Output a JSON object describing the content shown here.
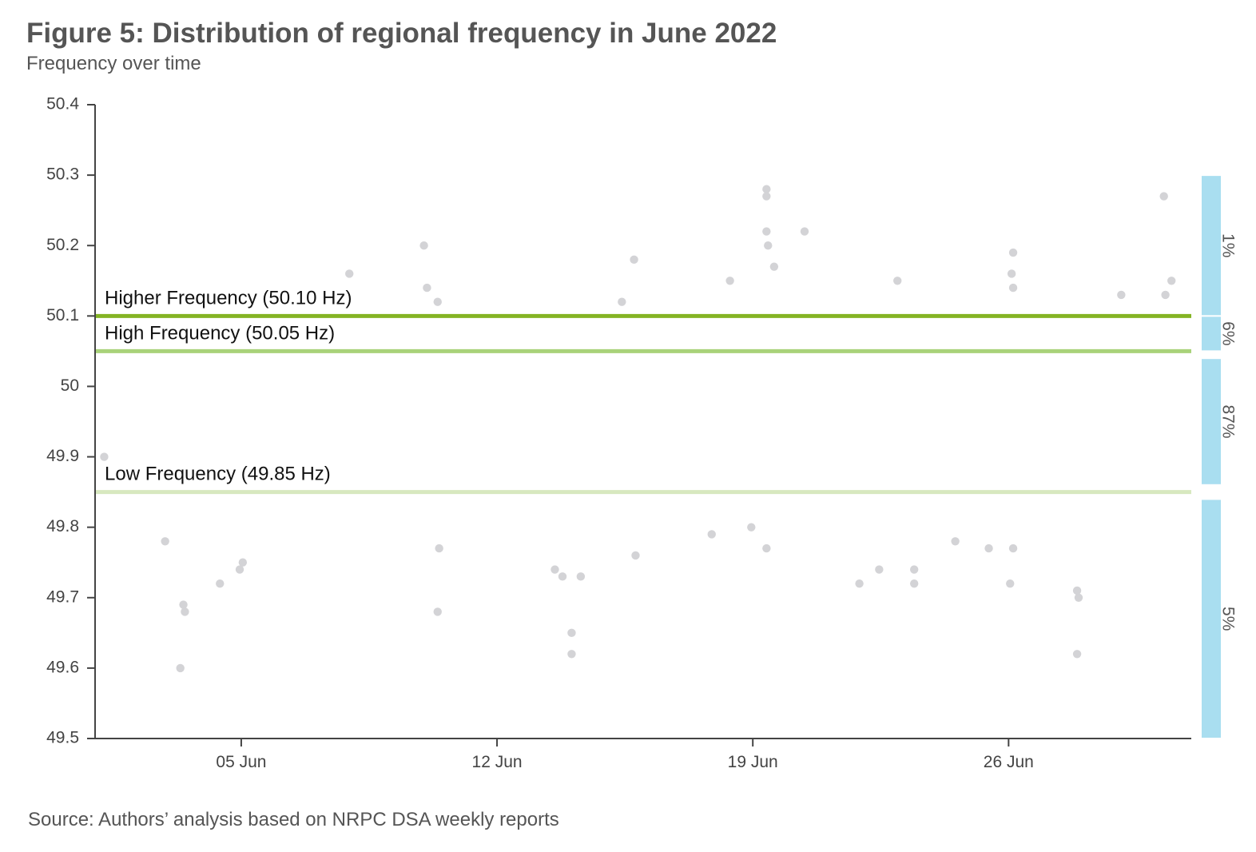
{
  "chart_data": {
    "type": "scatter",
    "title": "Figure 5: Distribution of regional frequency in June 2022",
    "subtitle": "Frequency over time",
    "source": "Source: Authors’ analysis based on NRPC DSA weekly reports",
    "x_range": [
      "2022-06-01",
      "2022-06-30"
    ],
    "ylim": [
      49.5,
      50.4
    ],
    "y_ticks": [
      {
        "value": 50.4,
        "label": "50.4"
      },
      {
        "value": 50.3,
        "label": "50.3"
      },
      {
        "value": 50.2,
        "label": "50.2"
      },
      {
        "value": 50.1,
        "label": "50.1"
      },
      {
        "value": 50.0,
        "label": "50"
      },
      {
        "value": 49.9,
        "label": "49.9"
      },
      {
        "value": 49.8,
        "label": "49.8"
      },
      {
        "value": 49.7,
        "label": "49.7"
      },
      {
        "value": 49.6,
        "label": "49.6"
      },
      {
        "value": 49.5,
        "label": "49.5"
      }
    ],
    "x_ticks": [
      {
        "date": "2022-06-05",
        "label": "05 Jun"
      },
      {
        "date": "2022-06-12",
        "label": "12 Jun"
      },
      {
        "date": "2022-06-19",
        "label": "19 Jun"
      },
      {
        "date": "2022-06-26",
        "label": "26 Jun"
      }
    ],
    "reference_lines": [
      {
        "label": "Higher Frequency (50.10 Hz)",
        "value": 50.1,
        "color": "#84b424"
      },
      {
        "label": "High Frequency (50.05 Hz)",
        "value": 50.05,
        "color": "#a9d27a"
      },
      {
        "label": "Low Frequency (49.85 Hz)",
        "value": 49.85,
        "color": "#d7e8bf"
      }
    ],
    "share_bands": [
      {
        "label": "1%",
        "from": 50.1,
        "to": 50.3
      },
      {
        "label": "6%",
        "from": 50.05,
        "to": 50.1
      },
      {
        "label": "87%",
        "from": 49.86,
        "to": 50.04
      },
      {
        "label": "5%",
        "from": 49.5,
        "to": 49.84
      }
    ],
    "point_color": "#d3d3d6",
    "band_color": "#a9def0",
    "axis_color": "#444444",
    "points": [
      [
        "2022-06-01T06:00",
        49.9
      ],
      [
        "2022-06-03T08:00",
        49.6
      ],
      [
        "2022-06-03T10:00",
        49.69
      ],
      [
        "2022-06-03T11:00",
        49.68
      ],
      [
        "2022-06-02T22:00",
        49.78
      ],
      [
        "2022-06-04T10:00",
        49.72
      ],
      [
        "2022-06-04T23:00",
        49.74
      ],
      [
        "2022-06-05T01:00",
        49.75
      ],
      [
        "2022-06-07T23:00",
        50.16
      ],
      [
        "2022-06-10T00:00",
        50.2
      ],
      [
        "2022-06-10T02:00",
        50.14
      ],
      [
        "2022-06-10T09:00",
        50.12
      ],
      [
        "2022-06-10T09:00",
        49.68
      ],
      [
        "2022-06-10T10:00",
        49.77
      ],
      [
        "2022-06-13T14:00",
        49.74
      ],
      [
        "2022-06-13T19:00",
        49.73
      ],
      [
        "2022-06-14T01:00",
        49.65
      ],
      [
        "2022-06-14T01:00",
        49.62
      ],
      [
        "2022-06-14T07:00",
        49.73
      ],
      [
        "2022-06-15T10:00",
        50.12
      ],
      [
        "2022-06-15T18:00",
        50.18
      ],
      [
        "2022-06-15T19:00",
        49.76
      ],
      [
        "2022-06-17T21:00",
        49.79
      ],
      [
        "2022-06-18T09:00",
        50.15
      ],
      [
        "2022-06-19T09:00",
        50.28
      ],
      [
        "2022-06-19T09:00",
        50.27
      ],
      [
        "2022-06-19T09:00",
        50.22
      ],
      [
        "2022-06-19T10:00",
        50.2
      ],
      [
        "2022-06-19T14:00",
        50.17
      ],
      [
        "2022-06-19T09:00",
        49.77
      ],
      [
        "2022-06-18T23:00",
        49.8
      ],
      [
        "2022-06-20T10:00",
        50.22
      ],
      [
        "2022-06-22T23:00",
        50.15
      ],
      [
        "2022-06-23T10:00",
        49.72
      ],
      [
        "2022-06-23T10:00",
        49.74
      ],
      [
        "2022-06-22T11:00",
        49.74
      ],
      [
        "2022-06-21T22:00",
        49.72
      ],
      [
        "2022-06-26T03:00",
        50.19
      ],
      [
        "2022-06-26T02:00",
        50.16
      ],
      [
        "2022-06-26T03:00",
        50.14
      ],
      [
        "2022-06-26T01:00",
        49.72
      ],
      [
        "2022-06-26T03:00",
        49.77
      ],
      [
        "2022-06-27T21:00",
        49.62
      ],
      [
        "2022-06-27T22:00",
        49.7
      ],
      [
        "2022-06-27T21:00",
        49.71
      ],
      [
        "2022-06-25T11:00",
        49.77
      ],
      [
        "2022-06-24T13:00",
        49.78
      ],
      [
        "2022-06-30T06:00",
        50.27
      ],
      [
        "2022-06-30T11:00",
        50.15
      ],
      [
        "2022-06-30T07:00",
        50.13
      ],
      [
        "2022-06-29T02:00",
        50.13
      ]
    ]
  }
}
